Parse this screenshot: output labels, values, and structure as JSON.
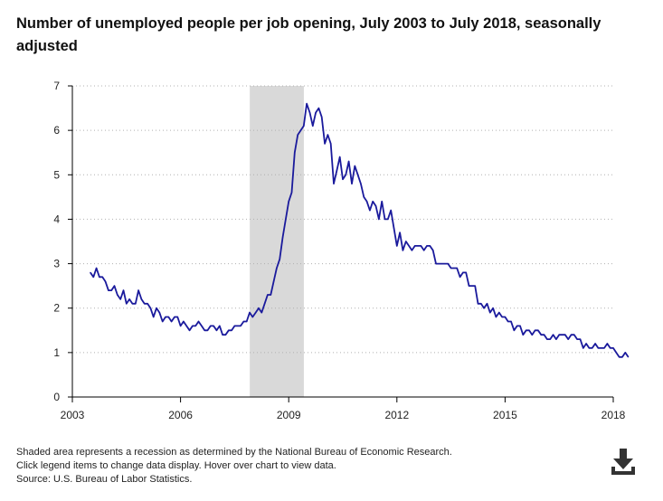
{
  "title": "Number of unemployed people per job opening, July 2003 to July 2018, seasonally adjusted",
  "footnotes": [
    "Shaded area represents a recession as determined by the National Bureau of Economic Research.",
    "Click legend items to change data display. Hover over chart to view data.",
    "Source: U.S. Bureau of Labor Statistics."
  ],
  "download_icon": "download-icon",
  "colors": {
    "line": "#1a1a9c",
    "recession": "#d9d9d9",
    "grid": "#b0b0b0",
    "axis": "#000000"
  },
  "chart_data": {
    "type": "line",
    "title": "Number of unemployed people per job opening, July 2003 to July 2018, seasonally adjusted",
    "xlabel": "",
    "ylabel": "",
    "xlim": [
      2003.5,
      2018.5
    ],
    "ylim": [
      0,
      7
    ],
    "x_ticks": [
      2003,
      2006,
      2009,
      2012,
      2015,
      2018
    ],
    "y_ticks": [
      0,
      1,
      2,
      3,
      4,
      5,
      6,
      7
    ],
    "grid": true,
    "recession": [
      2007.92,
      2009.42
    ],
    "x_start": 2003.5,
    "x_step": 0.0833333,
    "values": [
      2.8,
      2.7,
      2.9,
      2.7,
      2.7,
      2.6,
      2.4,
      2.4,
      2.5,
      2.3,
      2.2,
      2.4,
      2.1,
      2.2,
      2.1,
      2.1,
      2.4,
      2.2,
      2.1,
      2.1,
      2.0,
      1.8,
      2.0,
      1.9,
      1.7,
      1.8,
      1.8,
      1.7,
      1.8,
      1.8,
      1.6,
      1.7,
      1.6,
      1.5,
      1.6,
      1.6,
      1.7,
      1.6,
      1.5,
      1.5,
      1.6,
      1.6,
      1.5,
      1.6,
      1.4,
      1.4,
      1.5,
      1.5,
      1.6,
      1.6,
      1.6,
      1.7,
      1.7,
      1.9,
      1.8,
      1.9,
      2.0,
      1.9,
      2.1,
      2.3,
      2.3,
      2.6,
      2.9,
      3.1,
      3.6,
      4.0,
      4.4,
      4.6,
      5.5,
      5.9,
      6.0,
      6.1,
      6.6,
      6.4,
      6.1,
      6.4,
      6.5,
      6.3,
      5.7,
      5.9,
      5.7,
      4.8,
      5.1,
      5.4,
      4.9,
      5.0,
      5.3,
      4.8,
      5.2,
      5.0,
      4.8,
      4.5,
      4.4,
      4.2,
      4.4,
      4.3,
      4.0,
      4.4,
      4.0,
      4.0,
      4.2,
      3.8,
      3.4,
      3.7,
      3.3,
      3.5,
      3.4,
      3.3,
      3.4,
      3.4,
      3.4,
      3.3,
      3.4,
      3.4,
      3.3,
      3.0,
      3.0,
      3.0,
      3.0,
      3.0,
      2.9,
      2.9,
      2.9,
      2.7,
      2.8,
      2.8,
      2.5,
      2.5,
      2.5,
      2.1,
      2.1,
      2.0,
      2.1,
      1.9,
      2.0,
      1.8,
      1.9,
      1.8,
      1.8,
      1.7,
      1.7,
      1.5,
      1.6,
      1.6,
      1.4,
      1.5,
      1.5,
      1.4,
      1.5,
      1.5,
      1.4,
      1.4,
      1.3,
      1.3,
      1.4,
      1.3,
      1.4,
      1.4,
      1.4,
      1.3,
      1.4,
      1.4,
      1.3,
      1.3,
      1.1,
      1.2,
      1.1,
      1.1,
      1.2,
      1.1,
      1.1,
      1.1,
      1.2,
      1.1,
      1.1,
      1.0,
      0.9,
      0.9,
      1.0,
      0.9
    ]
  }
}
